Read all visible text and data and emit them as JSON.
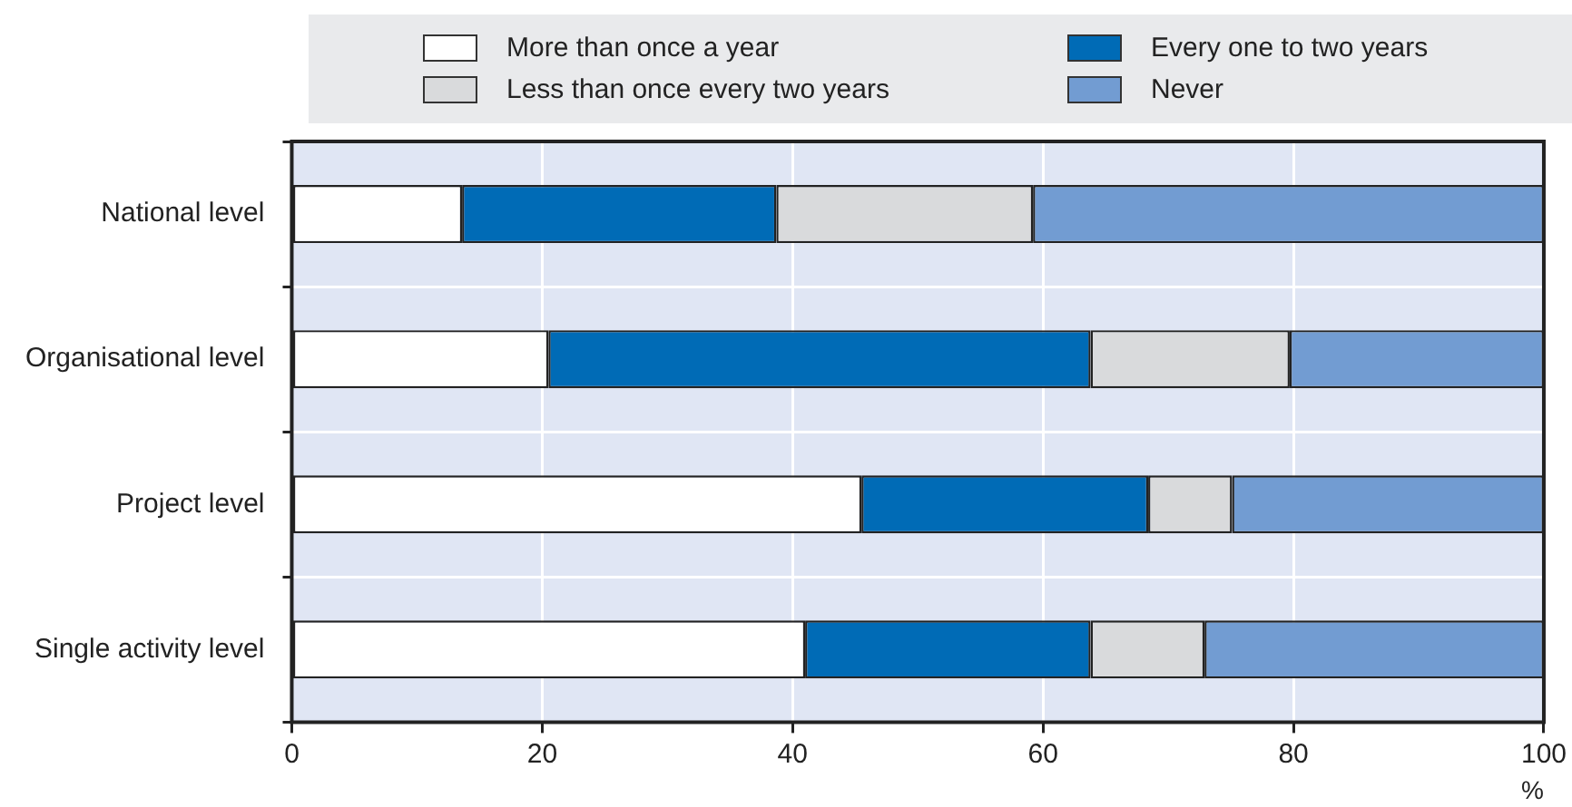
{
  "chart_data": {
    "type": "bar",
    "orientation": "horizontal",
    "stacked": true,
    "categories": [
      "National level",
      "Organisational level",
      "Project level",
      "Single activity level"
    ],
    "series": [
      {
        "name": "More than once a year",
        "color": "#ffffff",
        "values": [
          13.6,
          20.5,
          45.5,
          41.0
        ]
      },
      {
        "name": "Every one to two years",
        "color": "#006bb6",
        "values": [
          25.1,
          43.3,
          22.9,
          22.8
        ]
      },
      {
        "name": "Less than once every two years",
        "color": "#d9dadc",
        "values": [
          20.5,
          15.9,
          6.7,
          9.1
        ]
      },
      {
        "name": "Never",
        "color": "#729cd2",
        "values": [
          40.8,
          20.3,
          24.9,
          27.1
        ]
      }
    ],
    "xlabel": "%",
    "xlim": [
      0,
      100
    ],
    "xticks": [
      0,
      20,
      40,
      60,
      80,
      100
    ],
    "grid": true,
    "legend": "top"
  }
}
